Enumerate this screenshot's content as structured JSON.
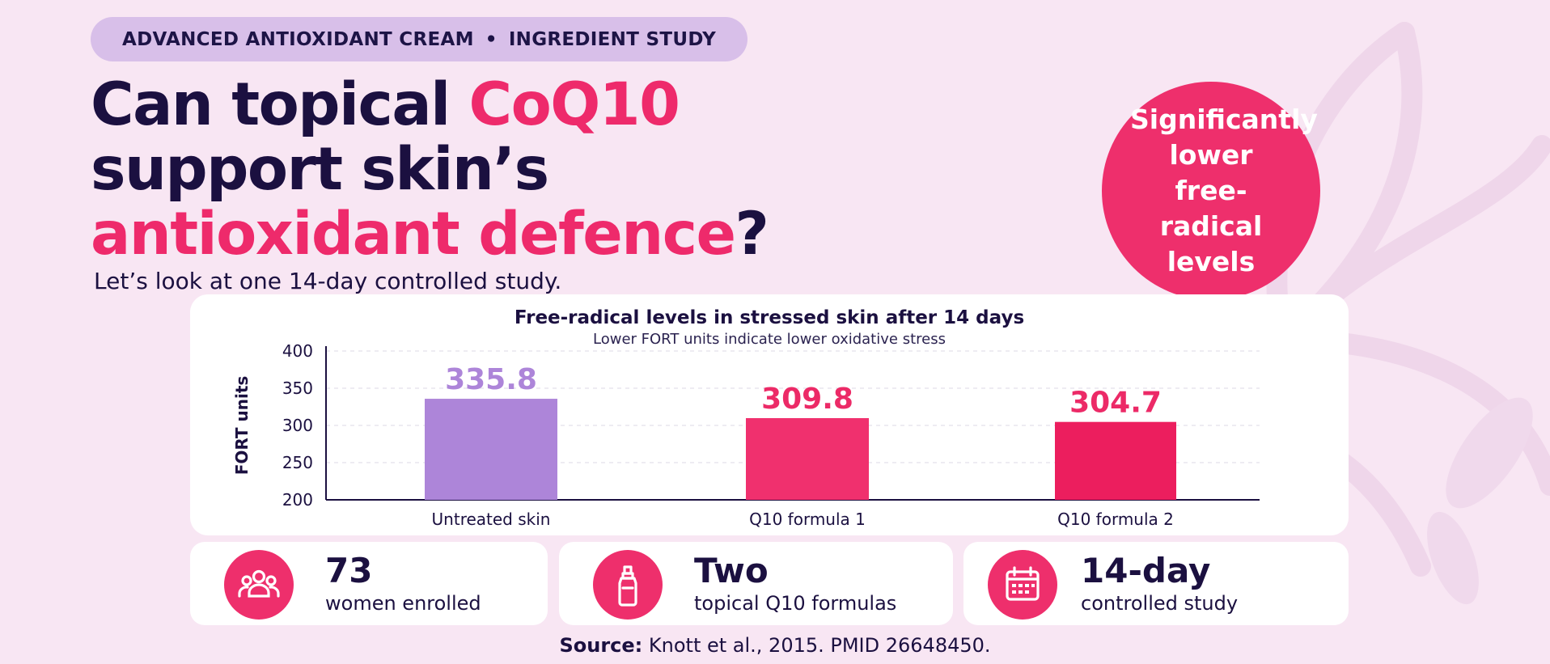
{
  "colors": {
    "background": "#f8e6f3",
    "navy": "#1b1040",
    "accent_pink": "#ee2a6b",
    "lavender": "#ad85d9",
    "pill": "#d8bfe9"
  },
  "pill": {
    "left": "ADVANCED ANTIOXIDANT CREAM",
    "separator": "•",
    "right": "INGREDIENT STUDY"
  },
  "headline": {
    "line1_a": "Can topical ",
    "line1_b": "CoQ10",
    "line2": "support skin’s",
    "line3_a": "antioxidant defence",
    "line3_b": "?"
  },
  "subtitle": "Let’s look at one 14-day controlled study.",
  "badge": {
    "text": "Significantly lower free-radical levels"
  },
  "chart_data": {
    "type": "bar",
    "title": "Free-radical levels in stressed skin after 14 days",
    "subtitle": "Lower FORT units indicate lower oxidative stress",
    "ylabel": "FORT units",
    "xlabel": "",
    "ylim": [
      200,
      400
    ],
    "yticks": [
      200,
      250,
      300,
      350,
      400
    ],
    "categories": [
      "Untreated skin",
      "Q10 formula 1",
      "Q10 formula 2"
    ],
    "values": [
      335.8,
      309.8,
      304.7
    ],
    "value_labels": [
      "335.8",
      "309.8",
      "304.7"
    ],
    "bar_colors": [
      "#ad85d9",
      "#f0306e",
      "#ec1e5e"
    ],
    "label_colors": [
      "#ad85d9",
      "#ec2a67",
      "#ec2a67"
    ],
    "grid": true,
    "legend": "none"
  },
  "stats": [
    {
      "icon": "people-icon",
      "value": "73",
      "label": "women enrolled"
    },
    {
      "icon": "dropper-bottle-icon",
      "value": "Two",
      "label": "topical Q10 formulas"
    },
    {
      "icon": "calendar-icon",
      "value": "14-day",
      "label": "controlled study"
    }
  ],
  "source": {
    "label": "Source:",
    "text": " Knott et al., 2015. PMID 26648450."
  }
}
